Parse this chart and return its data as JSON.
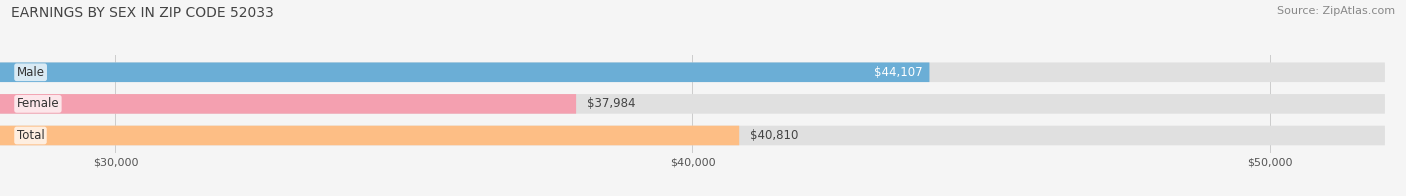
{
  "title": "EARNINGS BY SEX IN ZIP CODE 52033",
  "source": "Source: ZipAtlas.com",
  "categories": [
    "Male",
    "Female",
    "Total"
  ],
  "values": [
    44107,
    37984,
    40810
  ],
  "bar_colors": [
    "#6baed6",
    "#f4a0b0",
    "#fdbe85"
  ],
  "bar_bg_color": "#e0e0e0",
  "value_labels": [
    "$44,107",
    "$37,984",
    "$40,810"
  ],
  "xmin": 28000,
  "xmax": 52000,
  "xticks": [
    30000,
    40000,
    50000
  ],
  "xtick_labels": [
    "$30,000",
    "$40,000",
    "$50,000"
  ],
  "title_fontsize": 10,
  "source_fontsize": 8,
  "label_fontsize": 8.5,
  "figsize": [
    14.06,
    1.96
  ],
  "dpi": 100,
  "fig_bg_color": "#f5f5f5"
}
